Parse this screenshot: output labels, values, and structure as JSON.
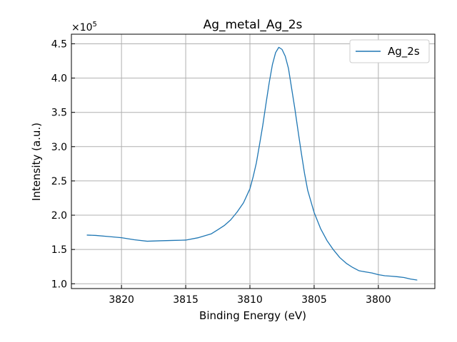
{
  "chart_data": {
    "type": "line",
    "title": "Ag_metal_Ag_2s",
    "xlabel": "Binding Energy (eV)",
    "ylabel": "Intensity (a.u.)",
    "y_multiplier_label": "×10",
    "y_multiplier_exp": "5",
    "x_reversed": true,
    "xlim": [
      3823.9,
      3795.6
    ],
    "ylim": [
      0.93,
      4.64
    ],
    "x_ticks": [
      3820,
      3815,
      3810,
      3805,
      3800
    ],
    "y_ticks": [
      1.0,
      1.5,
      2.0,
      2.5,
      3.0,
      3.5,
      4.0,
      4.5
    ],
    "grid": true,
    "legend": "top-right",
    "colors": {
      "series": "#1f77b4",
      "grid": "#b0b0b0"
    },
    "series": [
      {
        "name": "Ag_2s",
        "x": [
          3822.7,
          3822,
          3821,
          3820,
          3819,
          3818,
          3817,
          3816,
          3815,
          3814,
          3813,
          3812.5,
          3812,
          3811.5,
          3811,
          3810.5,
          3810,
          3809.75,
          3809.5,
          3809.25,
          3809,
          3808.75,
          3808.5,
          3808.25,
          3808,
          3807.75,
          3807.5,
          3807.25,
          3807,
          3806.75,
          3806.5,
          3806.25,
          3806,
          3805.75,
          3805.5,
          3805,
          3804.5,
          3804,
          3803.5,
          3803,
          3802.5,
          3802,
          3801.5,
          3801,
          3800.5,
          3800,
          3799.5,
          3799,
          3798.5,
          3798,
          3797.5,
          3797,
          3797
        ],
        "values": [
          1.71,
          1.7,
          1.68,
          1.66,
          1.63,
          1.61,
          1.62,
          1.63,
          1.64,
          1.68,
          1.74,
          1.8,
          1.86,
          1.94,
          2.05,
          2.18,
          2.38,
          2.55,
          2.75,
          3.02,
          3.3,
          3.62,
          3.93,
          4.2,
          4.38,
          4.46,
          4.43,
          4.33,
          4.15,
          3.85,
          3.55,
          3.22,
          2.9,
          2.6,
          2.35,
          2.03,
          1.8,
          1.63,
          1.5,
          1.39,
          1.31,
          1.25,
          1.2,
          1.18,
          1.16,
          1.13,
          1.11,
          1.1,
          1.09,
          1.08,
          1.06,
          1.05,
          1.05
        ]
      }
    ]
  }
}
